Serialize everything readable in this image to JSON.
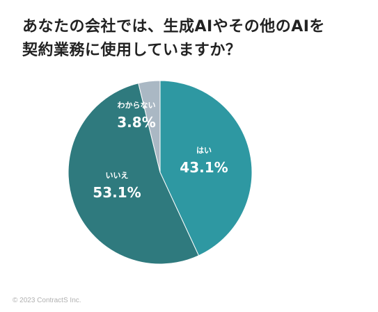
{
  "title_line1": "あなたの会社では、生成AIやその他のAIを",
  "title_line2": "契約業務に使用していますか？",
  "credit": "© 2023 ContractS Inc.",
  "chart_data": {
    "type": "pie",
    "start": "12 o'clock",
    "direction": "clockwise",
    "slices": [
      {
        "label": "はい",
        "value": 43.1,
        "value_label": "43.1%",
        "color": "#2e98a2"
      },
      {
        "label": "いいえ",
        "value": 53.1,
        "value_label": "53.1%",
        "color": "#2f7a7e"
      },
      {
        "label": "わからない",
        "value": 3.8,
        "value_label": "3.8%",
        "color": "#aab8c4"
      }
    ]
  }
}
